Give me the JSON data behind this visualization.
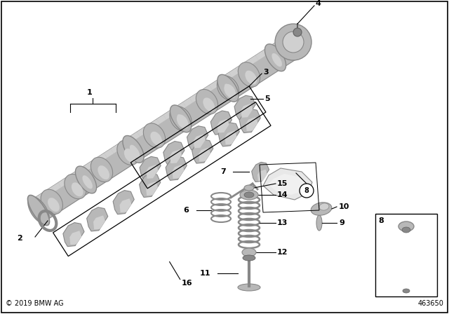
{
  "background_color": "#ffffff",
  "border_color": "#000000",
  "copyright_text": "© 2019 BMW AG",
  "part_number": "463650",
  "gray1": "#b8b8b8",
  "gray2": "#888888",
  "gray3": "#d0d0d0",
  "gray4": "#606060",
  "figsize": [
    6.4,
    4.48
  ],
  "dpi": 100
}
